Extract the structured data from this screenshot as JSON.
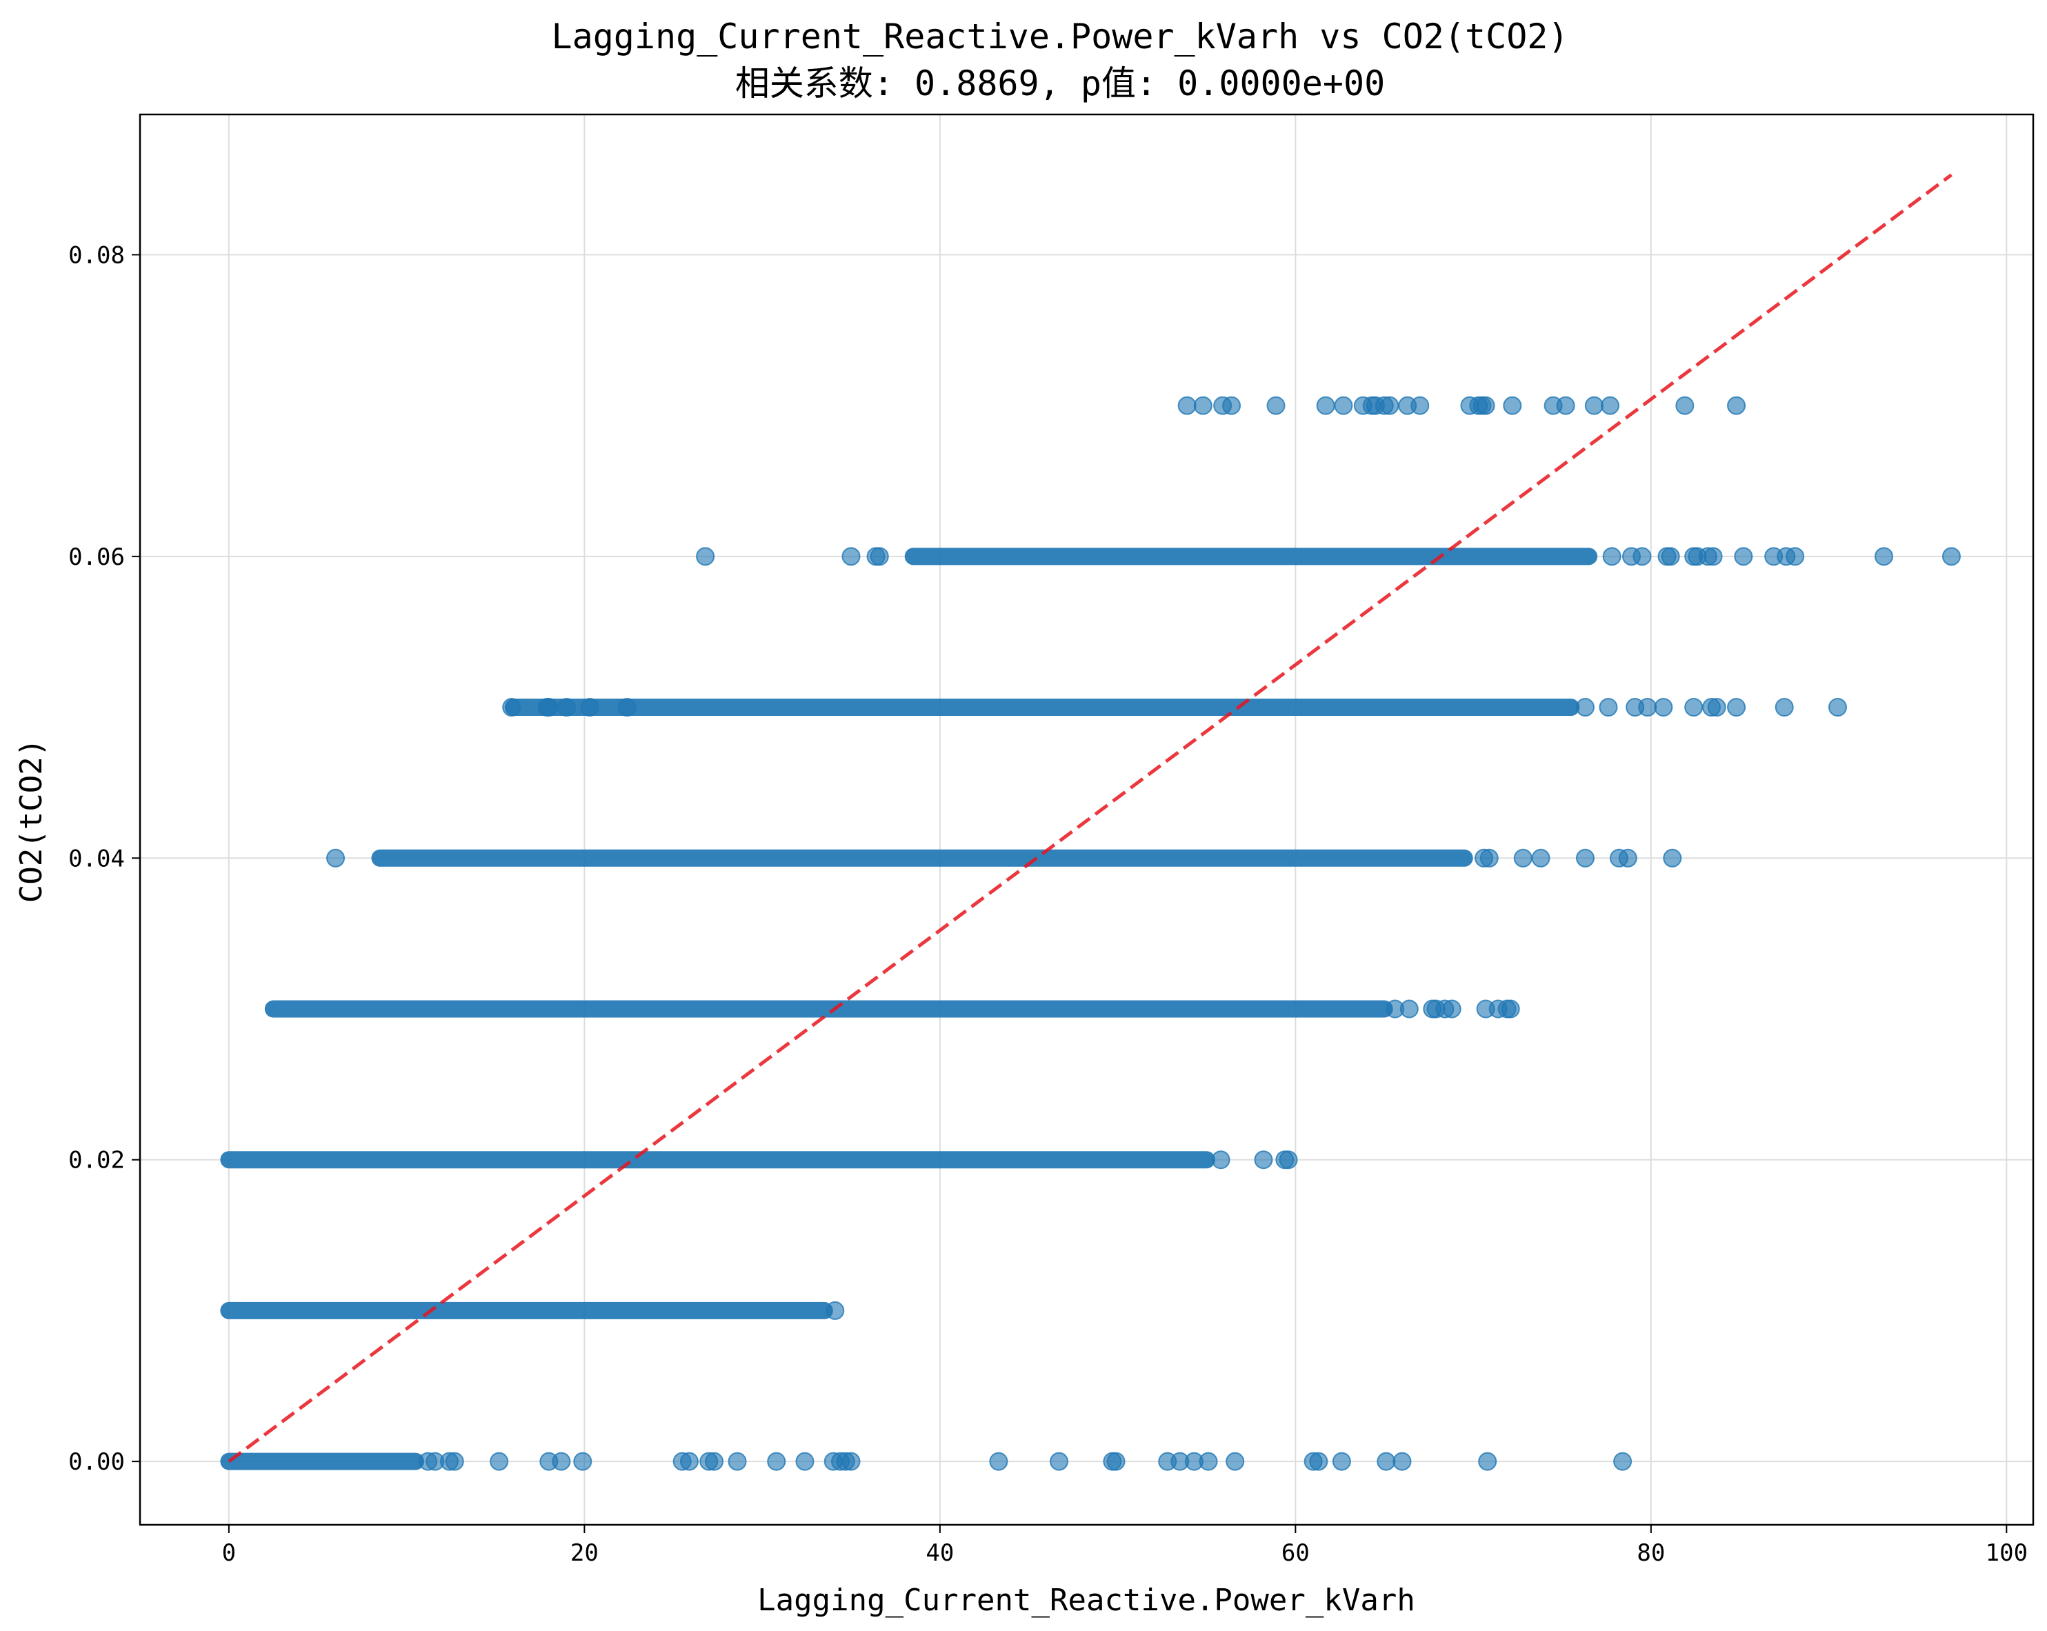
{
  "chart_data": {
    "type": "scatter",
    "title": "Lagging_Current_Reactive.Power_kVarh vs CO2(tCO2)",
    "subtitle": "相关系数: 0.8869, p值: 0.0000e+00",
    "xlabel": "Lagging_Current_Reactive.Power_kVarh",
    "ylabel": "CO2(tCO2)",
    "xlim": [
      -5,
      101.5
    ],
    "ylim": [
      -0.0042,
      0.0893
    ],
    "xticks": [
      0,
      20,
      40,
      60,
      80,
      100
    ],
    "yticks": [
      0.0,
      0.02,
      0.04,
      0.06,
      0.08
    ],
    "xtick_labels": [
      "0",
      "20",
      "40",
      "60",
      "80",
      "100"
    ],
    "ytick_labels": [
      "0.00",
      "0.02",
      "0.04",
      "0.06",
      "0.08"
    ],
    "grid": true,
    "colors": {
      "points": "#1f77b4",
      "trend": "#e8141c"
    },
    "series": [
      {
        "bands": [
          {
            "y": 0.0,
            "dense_range": [
              0,
              10.5
            ],
            "points": [
              11.2,
              11.6,
              12.4,
              12.7,
              15.2,
              18.0,
              18.7,
              19.9,
              25.5,
              25.9,
              27.0,
              27.3,
              28.6,
              30.8,
              32.4,
              34.0,
              34.4,
              34.7,
              35.0,
              43.3,
              46.7,
              49.7,
              49.9,
              52.8,
              53.5,
              54.3,
              55.1,
              56.6,
              61.0,
              61.3,
              62.6,
              65.1,
              66.0,
              70.8,
              78.4
            ]
          },
          {
            "y": 0.01,
            "dense_range": [
              0,
              33.5
            ],
            "points": [
              34.1
            ]
          },
          {
            "y": 0.02,
            "dense_range": [
              0,
              55.0
            ],
            "points": [
              55.8,
              58.2,
              59.4,
              59.6
            ]
          },
          {
            "y": 0.03,
            "dense_range": [
              2.5,
              65.0
            ],
            "points": [
              65.6,
              66.4,
              67.7,
              67.9,
              68.4,
              68.8,
              70.7,
              71.4,
              71.9,
              72.1
            ]
          },
          {
            "y": 0.04,
            "dense_range": [
              8.5,
              69.5
            ],
            "points": [
              6.0,
              70.6,
              70.9,
              72.8,
              73.8,
              76.3,
              78.2,
              78.7,
              81.2
            ]
          },
          {
            "y": 0.05,
            "dense_range": [
              16.0,
              75.5
            ],
            "points": [
              15.9,
              17.9,
              18.0,
              19.0,
              20.3,
              22.4,
              76.3,
              77.6,
              79.1,
              79.8,
              80.7,
              82.4,
              83.4,
              83.7,
              84.8,
              87.5,
              90.5
            ]
          },
          {
            "y": 0.06,
            "dense_range": [
              38.5,
              76.5
            ],
            "points": [
              26.8,
              35.0,
              36.4,
              36.6,
              77.8,
              78.9,
              79.5,
              80.9,
              81.1,
              82.4,
              82.6,
              83.2,
              83.5,
              85.2,
              86.9,
              87.6,
              88.1,
              93.1,
              96.9
            ]
          },
          {
            "y": 0.07,
            "dense_range": [],
            "points": [
              53.9,
              54.8,
              55.9,
              56.4,
              58.9,
              61.7,
              62.7,
              63.8,
              64.3,
              64.5,
              65.0,
              65.3,
              66.3,
              67.0,
              69.8,
              70.3,
              70.5,
              70.7,
              72.2,
              74.5,
              75.2,
              76.8,
              77.7,
              81.9,
              84.8
            ]
          }
        ]
      }
    ],
    "trend_line": {
      "x": [
        0,
        96.9
      ],
      "y": [
        0.0,
        0.0853
      ]
    }
  }
}
